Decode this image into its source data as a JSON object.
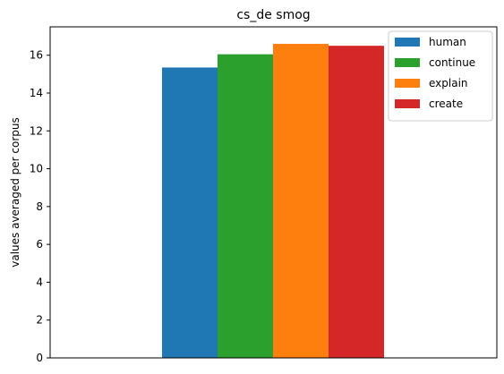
{
  "chart_data": {
    "type": "bar",
    "title": "cs_de smog",
    "xlabel": "",
    "ylabel": "values averaged per corpus",
    "ylim": [
      0,
      17.5
    ],
    "yticks": [
      0,
      2,
      4,
      6,
      8,
      10,
      12,
      14,
      16
    ],
    "categories": [
      ""
    ],
    "series": [
      {
        "name": "human",
        "values": [
          15.35
        ],
        "color": "#1f77b4"
      },
      {
        "name": "continue",
        "values": [
          16.05
        ],
        "color": "#2ca02c"
      },
      {
        "name": "explain",
        "values": [
          16.6
        ],
        "color": "#ff7f0e"
      },
      {
        "name": "create",
        "values": [
          16.5
        ],
        "color": "#d62728"
      }
    ],
    "grid": false,
    "legend_position": "top-right"
  }
}
